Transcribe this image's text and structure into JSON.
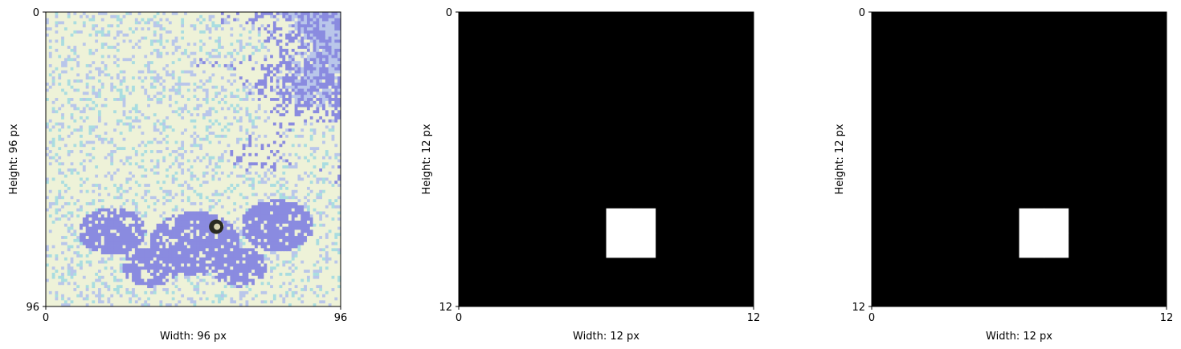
{
  "chart_data": [
    {
      "type": "heatmap",
      "content": "satellite image tile with a small dark spot",
      "xlabel": "Width: 96 px",
      "ylabel": "Height: 96 px",
      "xlim": [
        0,
        96
      ],
      "ylim": [
        96,
        0
      ],
      "xticks": [
        "0",
        "96"
      ],
      "yticks": [
        "0",
        "96"
      ],
      "palette": {
        "light": "#eef2d8",
        "mid": "#b9c6ea",
        "blue": "#8a8be0",
        "cyan": "#a9dde0",
        "dark": "#1a1a1a"
      },
      "spot": {
        "x": 55.5,
        "y": 70
      }
    },
    {
      "type": "heatmap",
      "content": "binary mask",
      "xlabel": "Width: 12 px",
      "ylabel": "Height: 12 px",
      "xlim": [
        0,
        12
      ],
      "ylim": [
        12,
        0
      ],
      "xticks": [
        "0",
        "12"
      ],
      "yticks": [
        "0",
        "12"
      ],
      "background_color": "#000000",
      "foreground_color": "#ffffff",
      "white_cells": [
        [
          6,
          8
        ],
        [
          7,
          8
        ],
        [
          6,
          9
        ],
        [
          7,
          9
        ]
      ]
    },
    {
      "type": "heatmap",
      "content": "binary mask",
      "xlabel": "Width: 12 px",
      "ylabel": "Height: 12 px",
      "xlim": [
        0,
        12
      ],
      "ylim": [
        12,
        0
      ],
      "xticks": [
        "0",
        "12"
      ],
      "yticks": [
        "0",
        "12"
      ],
      "background_color": "#000000",
      "foreground_color": "#ffffff",
      "white_cells": [
        [
          6,
          8
        ],
        [
          7,
          8
        ],
        [
          6,
          9
        ],
        [
          7,
          9
        ]
      ]
    }
  ]
}
